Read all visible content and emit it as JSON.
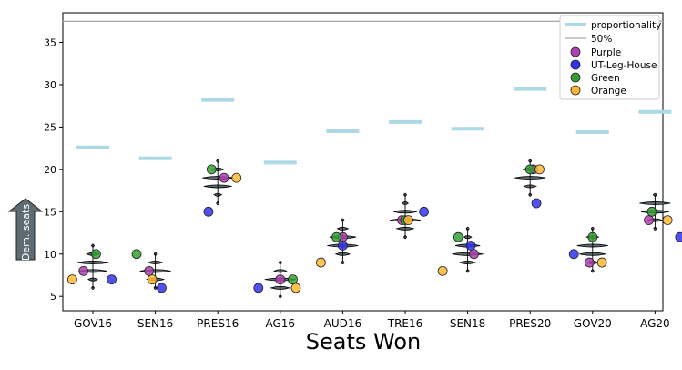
{
  "chart_data": {
    "type": "scatter",
    "title": "",
    "xlabel": "Seats Won",
    "ylabel": "Dem. seats",
    "ylim": [
      3.3,
      38.5
    ],
    "yticks": [
      "5",
      "10",
      "15",
      "20",
      "25",
      "30",
      "35"
    ],
    "reference_line": {
      "name": "50%",
      "value": 37.5,
      "color": "#aaaaaa"
    },
    "categories": [
      "GOV16",
      "SEN16",
      "PRES16",
      "AG16",
      "AUD16",
      "TRE16",
      "SEN18",
      "PRES20",
      "GOV20",
      "AG20"
    ],
    "proportionality": {
      "name": "proportionality",
      "color": "#add8e6",
      "values": [
        22.6,
        21.3,
        28.2,
        20.8,
        24.5,
        25.6,
        24.8,
        29.5,
        24.4,
        26.8
      ]
    },
    "ensemble_distributions": [
      {
        "min": 6,
        "max": 11,
        "levels": [
          {
            "v": 6,
            "w": 0.06
          },
          {
            "v": 7,
            "w": 0.3
          },
          {
            "v": 8,
            "w": 0.9
          },
          {
            "v": 9,
            "w": 1.0
          },
          {
            "v": 10,
            "w": 0.4
          },
          {
            "v": 11,
            "w": 0.06
          }
        ]
      },
      {
        "min": 6,
        "max": 10,
        "levels": [
          {
            "v": 6,
            "w": 0.08
          },
          {
            "v": 7,
            "w": 0.55
          },
          {
            "v": 8,
            "w": 1.0
          },
          {
            "v": 9,
            "w": 0.45
          },
          {
            "v": 10,
            "w": 0.06
          }
        ]
      },
      {
        "min": 16,
        "max": 21,
        "levels": [
          {
            "v": 16,
            "w": 0.04
          },
          {
            "v": 17,
            "w": 0.25
          },
          {
            "v": 18,
            "w": 0.9
          },
          {
            "v": 19,
            "w": 1.0
          },
          {
            "v": 20,
            "w": 0.35
          },
          {
            "v": 21,
            "w": 0.05
          }
        ]
      },
      {
        "min": 5,
        "max": 9,
        "levels": [
          {
            "v": 5,
            "w": 0.05
          },
          {
            "v": 6,
            "w": 0.6
          },
          {
            "v": 7,
            "w": 1.0
          },
          {
            "v": 8,
            "w": 0.4
          },
          {
            "v": 9,
            "w": 0.05
          }
        ]
      },
      {
        "min": 9,
        "max": 14,
        "levels": [
          {
            "v": 9,
            "w": 0.06
          },
          {
            "v": 10,
            "w": 0.45
          },
          {
            "v": 11,
            "w": 1.0
          },
          {
            "v": 12,
            "w": 0.85
          },
          {
            "v": 13,
            "w": 0.35
          },
          {
            "v": 14,
            "w": 0.06
          }
        ]
      },
      {
        "min": 12,
        "max": 17,
        "levels": [
          {
            "v": 12,
            "w": 0.06
          },
          {
            "v": 13,
            "w": 0.55
          },
          {
            "v": 14,
            "w": 1.0
          },
          {
            "v": 15,
            "w": 0.75
          },
          {
            "v": 16,
            "w": 0.2
          },
          {
            "v": 17,
            "w": 0.04
          }
        ]
      },
      {
        "min": 8,
        "max": 13,
        "levels": [
          {
            "v": 8,
            "w": 0.06
          },
          {
            "v": 9,
            "w": 0.5
          },
          {
            "v": 10,
            "w": 1.0
          },
          {
            "v": 11,
            "w": 0.8
          },
          {
            "v": 12,
            "w": 0.25
          },
          {
            "v": 13,
            "w": 0.04
          }
        ]
      },
      {
        "min": 17,
        "max": 21,
        "levels": [
          {
            "v": 17,
            "w": 0.06
          },
          {
            "v": 18,
            "w": 0.4
          },
          {
            "v": 19,
            "w": 1.0
          },
          {
            "v": 20,
            "w": 0.45
          },
          {
            "v": 21,
            "w": 0.06
          }
        ]
      },
      {
        "min": 8,
        "max": 13,
        "levels": [
          {
            "v": 8,
            "w": 0.06
          },
          {
            "v": 9,
            "w": 0.35
          },
          {
            "v": 10,
            "w": 0.85
          },
          {
            "v": 11,
            "w": 1.0
          },
          {
            "v": 12,
            "w": 0.4
          },
          {
            "v": 13,
            "w": 0.05
          }
        ]
      },
      {
        "min": 13,
        "max": 17,
        "levels": [
          {
            "v": 13,
            "w": 0.06
          },
          {
            "v": 14,
            "w": 0.45
          },
          {
            "v": 15,
            "w": 0.9
          },
          {
            "v": 16,
            "w": 1.0
          },
          {
            "v": 17,
            "w": 0.12
          }
        ]
      }
    ],
    "series": [
      {
        "name": "Purple",
        "color": "#b040b0",
        "offset": -0.15,
        "values": [
          8,
          8,
          19,
          7,
          12,
          14,
          10,
          20,
          9,
          14
        ]
      },
      {
        "name": "UT-Leg-House",
        "color": "#3333ee",
        "offset": 0.33,
        "values": [
          7,
          6,
          15,
          6,
          11,
          15,
          11,
          16,
          10,
          12
        ]
      },
      {
        "name": "Green",
        "color": "#33a033",
        "offset": 0.05,
        "values": [
          10,
          10,
          20,
          7,
          12,
          14,
          12,
          20,
          12,
          15
        ]
      },
      {
        "name": "Orange",
        "color": "#ffb833",
        "offset": -0.33,
        "values": [
          7,
          7,
          19,
          6,
          9,
          14,
          8,
          20,
          9,
          14
        ]
      }
    ],
    "series_x_offsets": [
      [
        -0.15,
        -0.1,
        0.1,
        0.0,
        0.0,
        -0.05,
        0.1,
        0.05,
        -0.05,
        -0.1
      ],
      [
        0.3,
        0.1,
        -0.15,
        -0.35,
        0.0,
        0.3,
        0.05,
        0.1,
        -0.3,
        0.4
      ],
      [
        0.05,
        -0.3,
        -0.1,
        0.2,
        -0.1,
        0.0,
        -0.15,
        0.0,
        0.0,
        -0.05
      ],
      [
        -0.33,
        -0.05,
        0.3,
        0.25,
        -0.35,
        0.05,
        -0.4,
        0.15,
        0.15,
        0.2
      ]
    ],
    "legend": {
      "placement": "top-right",
      "entries": [
        "proportionality",
        "50%",
        "Purple",
        "UT-Leg-House",
        "Green",
        "Orange"
      ]
    }
  }
}
